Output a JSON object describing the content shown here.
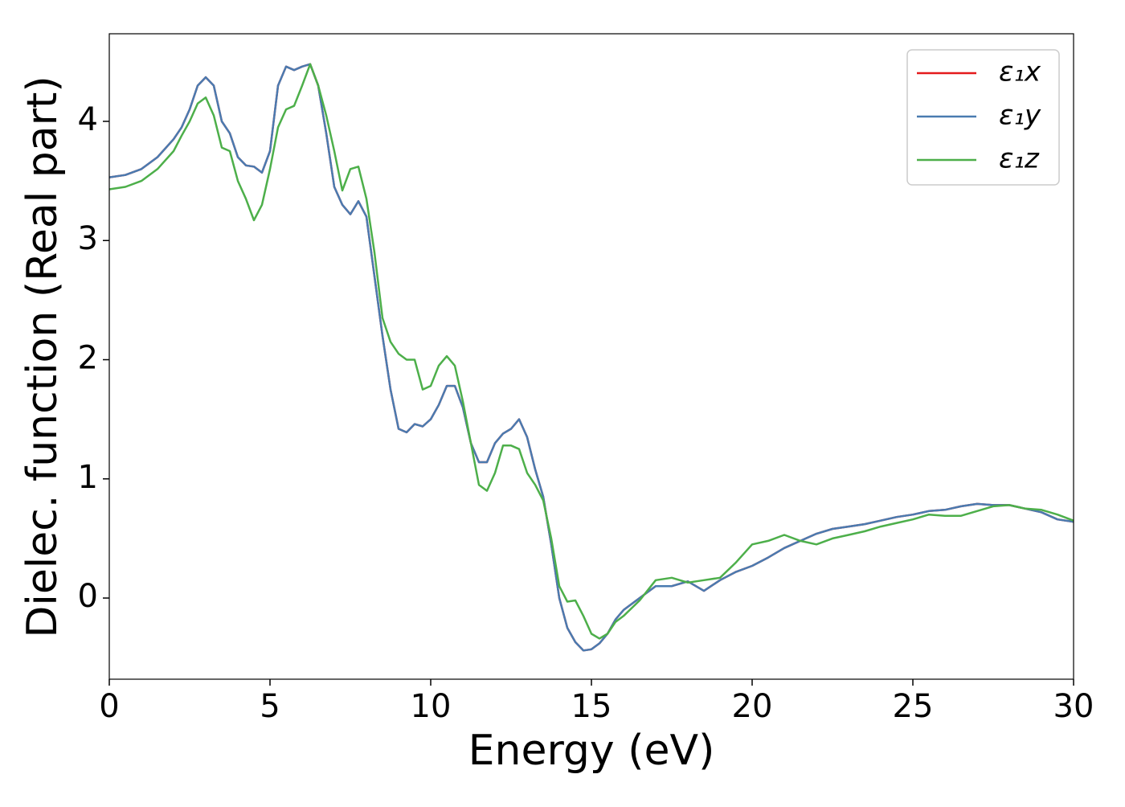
{
  "chart_data": {
    "type": "line",
    "xlabel": "Energy (eV)",
    "ylabel": "Dielec. function (Real part)",
    "x": [
      0,
      0.5,
      1,
      1.5,
      2,
      2.25,
      2.5,
      2.75,
      3,
      3.25,
      3.5,
      3.75,
      4,
      4.25,
      4.5,
      4.75,
      5,
      5.25,
      5.5,
      5.75,
      6,
      6.25,
      6.5,
      6.75,
      7,
      7.25,
      7.5,
      7.75,
      8,
      8.25,
      8.5,
      8.75,
      9,
      9.25,
      9.5,
      9.75,
      10,
      10.25,
      10.5,
      10.75,
      11,
      11.25,
      11.5,
      11.75,
      12,
      12.25,
      12.5,
      12.75,
      13,
      13.25,
      13.5,
      13.75,
      14,
      14.25,
      14.5,
      14.75,
      15,
      15.25,
      15.5,
      15.75,
      16,
      16.5,
      17,
      17.5,
      18,
      18.5,
      19,
      19.5,
      20,
      20.5,
      21,
      21.5,
      22,
      22.5,
      23,
      23.5,
      24,
      24.5,
      25,
      25.5,
      26,
      26.5,
      27,
      27.5,
      28,
      28.5,
      29,
      29.5,
      30
    ],
    "series": [
      {
        "name": "ε₁x",
        "color": "#e41a1c",
        "values": [
          3.53,
          3.55,
          3.6,
          3.7,
          3.85,
          3.95,
          4.1,
          4.3,
          4.37,
          4.3,
          4.0,
          3.9,
          3.7,
          3.63,
          3.62,
          3.57,
          3.75,
          4.3,
          4.46,
          4.43,
          4.46,
          4.48,
          4.3,
          3.9,
          3.45,
          3.3,
          3.22,
          3.33,
          3.2,
          2.7,
          2.2,
          1.75,
          1.42,
          1.39,
          1.46,
          1.44,
          1.5,
          1.62,
          1.78,
          1.78,
          1.6,
          1.3,
          1.14,
          1.14,
          1.3,
          1.38,
          1.42,
          1.5,
          1.35,
          1.08,
          0.85,
          0.45,
          0.0,
          -0.25,
          -0.37,
          -0.44,
          -0.43,
          -0.38,
          -0.3,
          -0.18,
          -0.1,
          0.0,
          0.1,
          0.1,
          0.14,
          0.06,
          0.15,
          0.22,
          0.27,
          0.34,
          0.42,
          0.48,
          0.54,
          0.58,
          0.6,
          0.62,
          0.65,
          0.68,
          0.7,
          0.73,
          0.74,
          0.77,
          0.79,
          0.78,
          0.78,
          0.75,
          0.72,
          0.66,
          0.64
        ]
      },
      {
        "name": "ε₁y",
        "color": "#4a7bb0",
        "values": [
          3.53,
          3.55,
          3.6,
          3.7,
          3.85,
          3.95,
          4.1,
          4.3,
          4.37,
          4.3,
          4.0,
          3.9,
          3.7,
          3.63,
          3.62,
          3.57,
          3.75,
          4.3,
          4.46,
          4.43,
          4.46,
          4.48,
          4.3,
          3.9,
          3.45,
          3.3,
          3.22,
          3.33,
          3.2,
          2.7,
          2.2,
          1.75,
          1.42,
          1.39,
          1.46,
          1.44,
          1.5,
          1.62,
          1.78,
          1.78,
          1.6,
          1.3,
          1.14,
          1.14,
          1.3,
          1.38,
          1.42,
          1.5,
          1.35,
          1.08,
          0.85,
          0.45,
          0.0,
          -0.25,
          -0.37,
          -0.44,
          -0.43,
          -0.38,
          -0.3,
          -0.18,
          -0.1,
          0.0,
          0.1,
          0.1,
          0.14,
          0.06,
          0.15,
          0.22,
          0.27,
          0.34,
          0.42,
          0.48,
          0.54,
          0.58,
          0.6,
          0.62,
          0.65,
          0.68,
          0.7,
          0.73,
          0.74,
          0.77,
          0.79,
          0.78,
          0.78,
          0.75,
          0.72,
          0.66,
          0.64
        ]
      },
      {
        "name": "ε₁z",
        "color": "#4daf4a",
        "values": [
          3.43,
          3.45,
          3.5,
          3.6,
          3.75,
          3.88,
          4.0,
          4.15,
          4.2,
          4.05,
          3.78,
          3.75,
          3.5,
          3.35,
          3.17,
          3.3,
          3.6,
          3.95,
          4.1,
          4.13,
          4.3,
          4.48,
          4.3,
          4.05,
          3.75,
          3.42,
          3.6,
          3.62,
          3.35,
          2.9,
          2.35,
          2.15,
          2.05,
          2.0,
          2.0,
          1.75,
          1.78,
          1.95,
          2.03,
          1.95,
          1.65,
          1.3,
          0.95,
          0.9,
          1.05,
          1.28,
          1.28,
          1.25,
          1.05,
          0.95,
          0.82,
          0.5,
          0.1,
          -0.03,
          -0.02,
          -0.15,
          -0.3,
          -0.34,
          -0.3,
          -0.2,
          -0.15,
          -0.02,
          0.15,
          0.17,
          0.13,
          0.15,
          0.17,
          0.3,
          0.45,
          0.48,
          0.53,
          0.48,
          0.45,
          0.5,
          0.53,
          0.56,
          0.6,
          0.63,
          0.66,
          0.7,
          0.69,
          0.69,
          0.73,
          0.77,
          0.78,
          0.75,
          0.74,
          0.7,
          0.65
        ]
      }
    ],
    "xlim": [
      0,
      30
    ],
    "xticks": [
      0,
      5,
      10,
      15,
      20,
      25,
      30
    ],
    "ylim": [
      -0.681,
      4.735
    ],
    "yticks": [
      0,
      1,
      2,
      3,
      4
    ],
    "grid": false,
    "legend": "upper right"
  }
}
